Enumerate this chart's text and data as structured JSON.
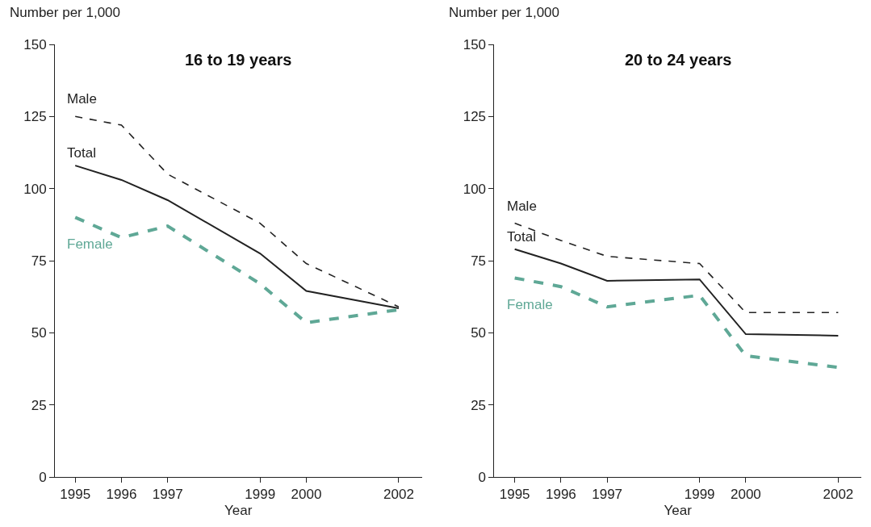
{
  "chart_data": [
    {
      "type": "line",
      "title": "16 to 19 years",
      "xlabel": "Year",
      "ylabel": "Number per 1,000",
      "x": [
        1995,
        1996,
        1997,
        1999,
        2000,
        2002
      ],
      "xlim": [
        1994.56,
        2002.5
      ],
      "xticks": [
        1995,
        1996,
        1997,
        1999,
        2000,
        2002
      ],
      "ylim": [
        0,
        150
      ],
      "yticks": [
        0,
        25,
        50,
        75,
        100,
        125,
        150
      ],
      "series": [
        {
          "name": "Male",
          "color": "#222222",
          "line_style": "dashed",
          "values": [
            125,
            122,
            105,
            88,
            74,
            59
          ]
        },
        {
          "name": "Total",
          "color": "#222222",
          "line_style": "solid",
          "values": [
            108,
            103,
            96,
            77.5,
            64.5,
            58.5
          ]
        },
        {
          "name": "Female",
          "color": "#5fa896",
          "line_style": "dashed",
          "values": [
            90,
            83,
            87,
            67,
            53.5,
            58
          ]
        }
      ]
    },
    {
      "type": "line",
      "title": "20 to 24 years",
      "xlabel": "Year",
      "ylabel": "Number per 1,000",
      "x": [
        1995,
        1996,
        1997,
        1999,
        2000,
        2002
      ],
      "xlim": [
        1994.56,
        2002.5
      ],
      "xticks": [
        1995,
        1996,
        1997,
        1999,
        2000,
        2002
      ],
      "ylim": [
        0,
        150
      ],
      "yticks": [
        0,
        25,
        50,
        75,
        100,
        125,
        150
      ],
      "series": [
        {
          "name": "Male",
          "color": "#222222",
          "line_style": "dashed",
          "values": [
            88,
            82,
            76.5,
            74,
            57,
            57
          ]
        },
        {
          "name": "Total",
          "color": "#222222",
          "line_style": "solid",
          "values": [
            79,
            74,
            68,
            68.5,
            49.5,
            49
          ]
        },
        {
          "name": "Female",
          "color": "#5fa896",
          "line_style": "dashed",
          "values": [
            69,
            66,
            59,
            63,
            42,
            38
          ]
        }
      ]
    }
  ]
}
